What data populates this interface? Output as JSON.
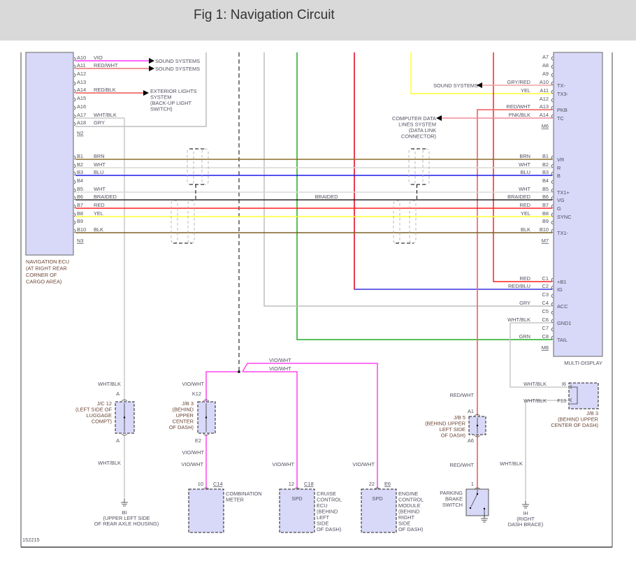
{
  "header": {
    "title": "Fig 1: Navigation Circuit"
  },
  "wire_colors": {
    "VIO": "#ff33ff",
    "RED_WHT": "#f07070",
    "RED_BLK": "#ee5555",
    "WHT_BLK": "#c8c8c8",
    "GRY": "#bdbdbd",
    "BRN": "#8b6d2c",
    "WHT": "#d8d8d8",
    "BLU": "#1a1ae6",
    "BRAIDED": "#000000",
    "RED": "#ff2020",
    "YEL": "#ffff33",
    "BLK": "#7a6020",
    "GRN": "#22aa22",
    "GRY_RED": "#f4a0a0",
    "PNK_BLK": "#f08a9a",
    "VIO_WHT": "#ff44ee",
    "RED_BLU": "#3333dd"
  },
  "nav_ecu": {
    "name_lines": [
      "NAVIGATION ECU",
      "(AT RIGHT REAR",
      "CORNER OF",
      "CARGO AREA)"
    ],
    "connector_a": "N2",
    "connector_b": "N3",
    "pins_a": [
      {
        "pin": "A10",
        "wire": "VIO"
      },
      {
        "pin": "A11",
        "wire": "RED/WHT"
      },
      {
        "pin": "A12",
        "wire": ""
      },
      {
        "pin": "A13",
        "wire": ""
      },
      {
        "pin": "A14",
        "wire": "RED/BLK"
      },
      {
        "pin": "A15",
        "wire": ""
      },
      {
        "pin": "A16",
        "wire": ""
      },
      {
        "pin": "A17",
        "wire": "WHT/BLK"
      },
      {
        "pin": "A18",
        "wire": "GRY"
      }
    ],
    "pins_b": [
      {
        "pin": "B1",
        "wire": "BRN"
      },
      {
        "pin": "B2",
        "wire": "WHT"
      },
      {
        "pin": "B3",
        "wire": "BLU"
      },
      {
        "pin": "B4",
        "wire": ""
      },
      {
        "pin": "B5",
        "wire": "WHT"
      },
      {
        "pin": "B6",
        "wire": "BRAIDED"
      },
      {
        "pin": "B7",
        "wire": "RED"
      },
      {
        "pin": "B8",
        "wire": "YEL"
      },
      {
        "pin": "B9",
        "wire": ""
      },
      {
        "pin": "B10",
        "wire": "BLK"
      }
    ]
  },
  "destinations": {
    "sound_1": "SOUND SYSTEMS",
    "sound_2": "SOUND SYSTEMS",
    "exterior_lights": [
      "EXTERIOR LIGHTS",
      "SYSTEM",
      "(BACK-UP LIGHT",
      "SWITCH)"
    ],
    "sound_3": "SOUND SYSTEMS",
    "data_link": [
      "COMPUTER DATA",
      "LINES SYSTEM",
      "(DATA LINK",
      "CONNECTOR)"
    ]
  },
  "braided_label": "BRAIDED",
  "multi_display": {
    "name": "MULTI-DISPLAY",
    "connector_a": "M6",
    "connector_b": "M7",
    "connector_c": "M8",
    "pins_a": [
      {
        "pin": "A7",
        "wire": "",
        "terminal": ""
      },
      {
        "pin": "A8",
        "wire": "",
        "terminal": ""
      },
      {
        "pin": "A9",
        "wire": "",
        "terminal": ""
      },
      {
        "pin": "A10",
        "wire": "GRY/RED",
        "terminal": "TX-"
      },
      {
        "pin": "A11",
        "wire": "YEL",
        "terminal": "TX3-"
      },
      {
        "pin": "A12",
        "wire": "",
        "terminal": ""
      },
      {
        "pin": "A13",
        "wire": "RED/WHT",
        "terminal": "PKB"
      },
      {
        "pin": "A14",
        "wire": "PNK/BLK",
        "terminal": "TC"
      }
    ],
    "pins_b": [
      {
        "pin": "B1",
        "wire": "BRN",
        "terminal": "VR"
      },
      {
        "pin": "B2",
        "wire": "WHT",
        "terminal": "R"
      },
      {
        "pin": "B3",
        "wire": "BLU",
        "terminal": "B"
      },
      {
        "pin": "B4",
        "wire": "",
        "terminal": ""
      },
      {
        "pin": "B5",
        "wire": "WHT",
        "terminal": "TX1+"
      },
      {
        "pin": "B6",
        "wire": "BRAIDED",
        "terminal": "VG"
      },
      {
        "pin": "B7",
        "wire": "RED",
        "terminal": "G"
      },
      {
        "pin": "B8",
        "wire": "YEL",
        "terminal": "SYNC"
      },
      {
        "pin": "B9",
        "wire": "",
        "terminal": ""
      },
      {
        "pin": "B10",
        "wire": "BLK",
        "terminal": "TX1-"
      }
    ],
    "pins_c": [
      {
        "pin": "C1",
        "wire": "RED",
        "terminal": "+B1"
      },
      {
        "pin": "C2",
        "wire": "RED/BLU",
        "terminal": "IG"
      },
      {
        "pin": "C3",
        "wire": "",
        "terminal": ""
      },
      {
        "pin": "C4",
        "wire": "GRY",
        "terminal": "ACC"
      },
      {
        "pin": "C5",
        "wire": "",
        "terminal": ""
      },
      {
        "pin": "C6",
        "wire": "WHT/BLK",
        "terminal": "GND1"
      },
      {
        "pin": "C7",
        "wire": "",
        "terminal": ""
      },
      {
        "pin": "C8",
        "wire": "GRN",
        "terminal": "TAIL"
      }
    ]
  },
  "junctions": {
    "jc12": {
      "wire_top": "WHT/BLK",
      "pin_top": "A",
      "pin_bottom": "A",
      "wire_bottom": "WHT/BLK",
      "lines": [
        "J/C 12",
        "(LEFT SIDE OF",
        "LUGGAGE",
        "COMPT)"
      ]
    },
    "jb3_left": {
      "wire_top": "VIO/WHT",
      "pin_top": "K12",
      "pin_bottom": "E2",
      "wire_bottom": "VIO/WHT",
      "lines": [
        "J/B 3",
        "(BEHIND",
        "UPPER",
        "CENTER",
        "OF DASH)"
      ]
    },
    "jb5": {
      "wire_top": "RED/WHT",
      "pin_top": "A1",
      "pin_bottom": "A6",
      "wire_bottom": "RED/WHT",
      "lines": [
        "J/B 5",
        "(BEHIND UPPER",
        "LEFT SIDE",
        "OF DASH)"
      ]
    },
    "jb3_right": {
      "wire_1": "WHT/BLK",
      "pin_1": "I6",
      "wire_2": "WHT/BLK",
      "pin_2": "F13",
      "wire_down": "WHT/BLK",
      "lines": [
        "J/B 3",
        "(BEHIND UPPER",
        "CENTER OF DASH)"
      ]
    },
    "splice_wire_1": "VIO/WHT",
    "splice_wire_2": "VIO/WHT"
  },
  "components": {
    "combination_meter": {
      "pin": "10",
      "connector": "C14",
      "wire": "VIO/WHT",
      "terminal": "",
      "lines": [
        "COMBINATION",
        "METER"
      ]
    },
    "cruise_control": {
      "pin": "12",
      "connector": "C18",
      "wire": "VIO/WHT",
      "terminal": "SPD",
      "lines": [
        "CRUISE",
        "CONTROL",
        "ECU",
        "(BEHIND",
        "LEFT",
        "SIDE",
        "OF DASH)"
      ]
    },
    "engine_control": {
      "pin": "22",
      "connector": "E6",
      "wire": "VIO/WHT",
      "terminal": "SPD",
      "lines": [
        "ENGINE",
        "CONTROL",
        "MODULE",
        "(BEHIND",
        "RIGHT",
        "SIDE",
        "OF DASH)"
      ]
    },
    "parking_brake": {
      "pin": "1",
      "lines": [
        "PARKING",
        "BRAKE",
        "SWITCH"
      ]
    }
  },
  "grounds": {
    "bi": {
      "name": "BI",
      "lines": [
        "(UPPER LEFT SIDE",
        "OF REAR AXLE HOUSING)"
      ]
    },
    "ih": {
      "name": "IH",
      "lines": [
        "(RIGHT",
        "DASH BRACE)"
      ]
    }
  },
  "figure_id": "152215"
}
